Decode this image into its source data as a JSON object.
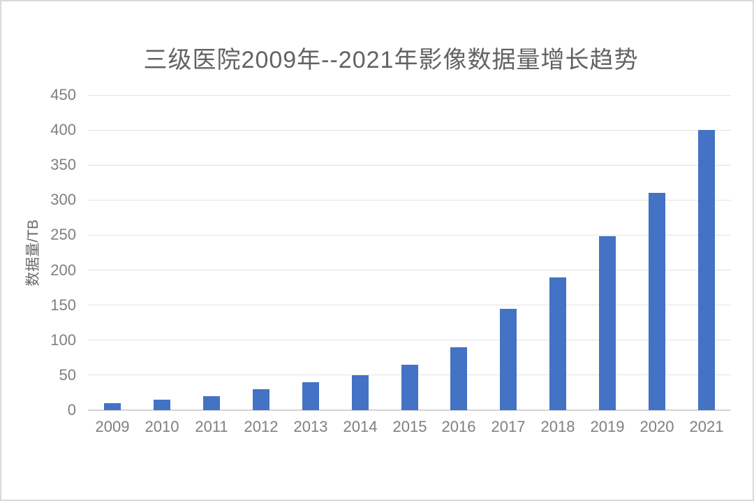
{
  "chart_data": {
    "type": "bar",
    "title": "三级医院2009年--2021年影像数据量增长趋势",
    "xlabel": "",
    "ylabel": "数据量/TB",
    "categories": [
      "2009",
      "2010",
      "2011",
      "2012",
      "2013",
      "2014",
      "2015",
      "2016",
      "2017",
      "2018",
      "2019",
      "2020",
      "2021"
    ],
    "values": [
      10,
      15,
      20,
      30,
      40,
      50,
      65,
      90,
      145,
      190,
      248,
      310,
      400
    ],
    "ylim": [
      0,
      450
    ],
    "ytick_step": 50,
    "grid": true,
    "legend_position": "none",
    "bar_color": "#4472C4",
    "gridline_color": "#e2e2e2",
    "axis_line_color": "#d4d4d4",
    "title_color": "#636363",
    "label_color": "#6a6a6a",
    "tick_color": "#7f7f7f",
    "frame_border_color": "#dadada"
  }
}
